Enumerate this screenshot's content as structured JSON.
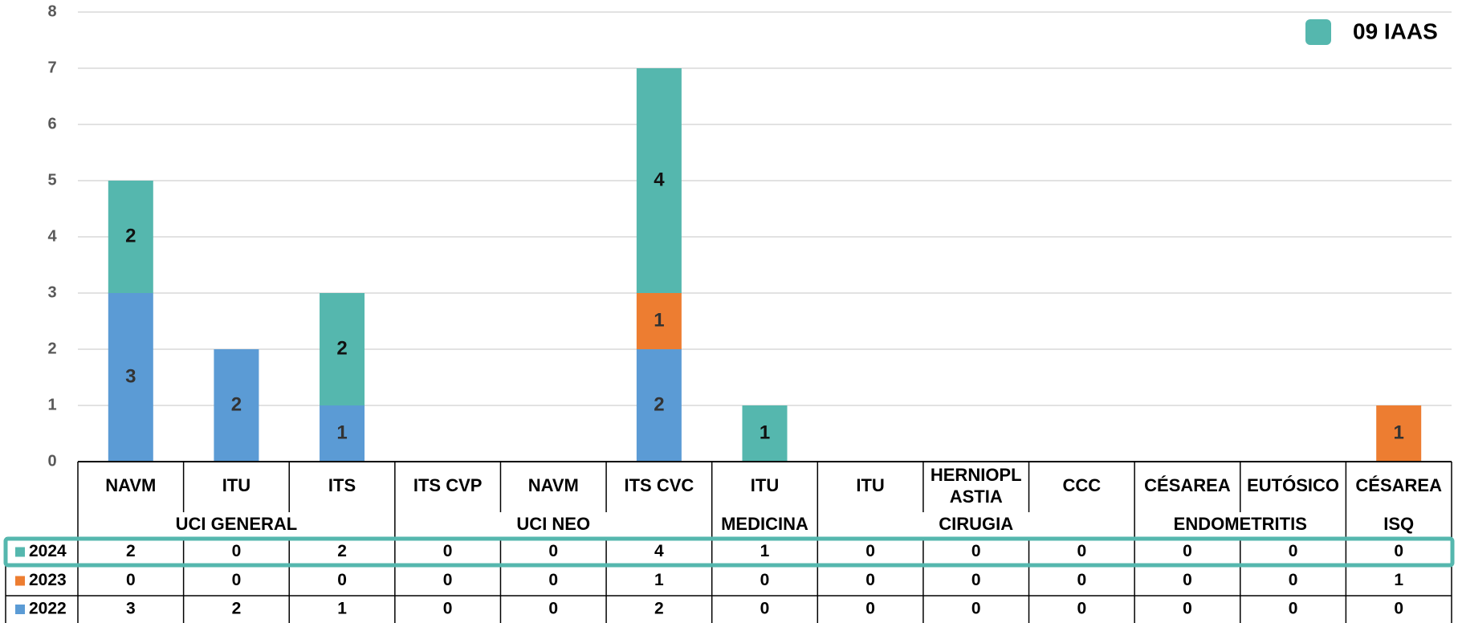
{
  "chart_data": {
    "type": "stacked_bar",
    "legend_title": "09 IAAS",
    "legend_color": "#55b7ae",
    "categories": [
      "NAVM",
      "ITU",
      "ITS",
      "ITS CVP",
      "NAVM",
      "ITS CVC",
      "ITU",
      "ITU",
      "HERNIOPLASTIA",
      "CCC",
      "CÉSAREA",
      "EUTÓSICO",
      "CÉSAREA"
    ],
    "groups": [
      {
        "name": "UCI GENERAL",
        "count": 3
      },
      {
        "name": "UCI NEO",
        "count": 3
      },
      {
        "name": "MEDICINA",
        "count": 1
      },
      {
        "name": "CIRUGIA",
        "count": 3
      },
      {
        "name": "ENDOMETRITIS",
        "count": 2
      },
      {
        "name": "ISQ",
        "count": 1
      }
    ],
    "series": [
      {
        "name": "2022",
        "color": "#5b9bd5",
        "values": [
          3,
          2,
          1,
          0,
          0,
          2,
          0,
          0,
          0,
          0,
          0,
          0,
          0
        ]
      },
      {
        "name": "2023",
        "color": "#ed7d31",
        "values": [
          0,
          0,
          0,
          0,
          0,
          1,
          0,
          0,
          0,
          0,
          0,
          0,
          1
        ]
      },
      {
        "name": "2024",
        "color": "#55b7ae",
        "values": [
          2,
          0,
          2,
          0,
          0,
          4,
          1,
          0,
          0,
          0,
          0,
          0,
          0
        ]
      }
    ],
    "ylim": [
      0,
      8
    ],
    "yticks": [
      0,
      1,
      2,
      3,
      4,
      5,
      6,
      7,
      8
    ],
    "grid": true
  }
}
